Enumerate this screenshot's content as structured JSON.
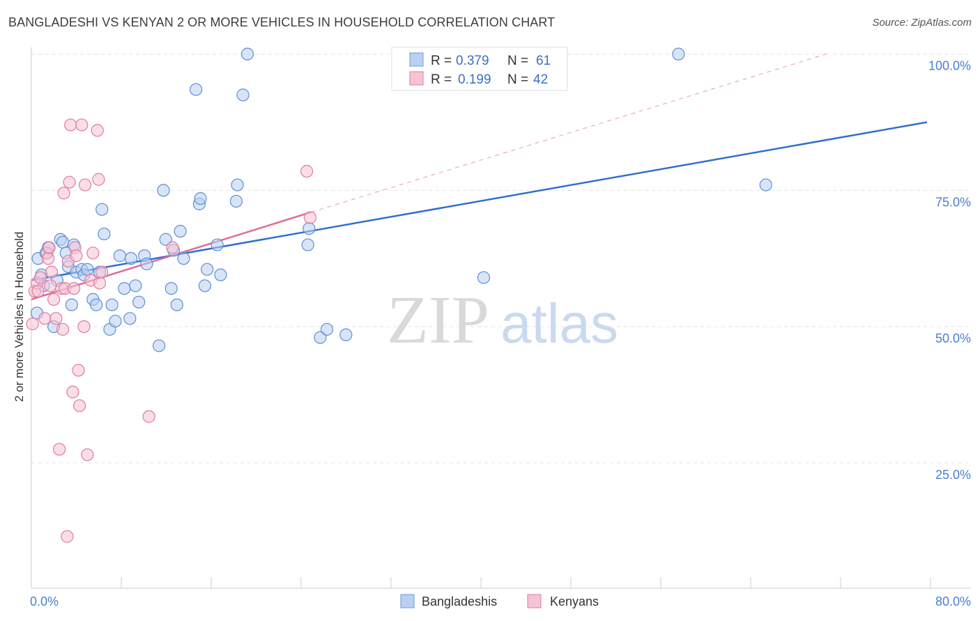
{
  "title": "BANGLADESHI VS KENYAN 2 OR MORE VEHICLES IN HOUSEHOLD CORRELATION CHART",
  "source": "Source: ZipAtlas.com",
  "watermark": {
    "zip": "ZIP",
    "atlas": "atlas"
  },
  "colors": {
    "blue": "#5b8ed8",
    "blue_fill": "#b9d0f0",
    "pink": "#e07aa0",
    "pink_fill": "#f6c3d3",
    "blue_line": "#2f6fcf",
    "pink_line": "#e06a95"
  },
  "legend": {
    "rows": [
      {
        "r_label": "R =",
        "r_value": "0.379",
        "n_label": "N =",
        "n_value": "61"
      },
      {
        "r_label": "R =",
        "r_value": "0.199",
        "n_label": "N =",
        "n_value": "42"
      }
    ]
  },
  "chart_data": {
    "type": "scatter",
    "title": "BANGLADESHI VS KENYAN 2 OR MORE VEHICLES IN HOUSEHOLD CORRELATION CHART",
    "xlabel": "",
    "ylabel": "2 or more Vehicles in Household",
    "xlim": [
      0,
      80
    ],
    "ylim": [
      2,
      102
    ],
    "x_tick_labels": [
      "0.0%",
      "80.0%"
    ],
    "y_ticks": [
      25,
      50,
      75,
      100
    ],
    "y_tick_labels": [
      "25.0%",
      "50.0%",
      "75.0%",
      "100.0%"
    ],
    "grid": true,
    "legend_position": "top-center",
    "series": [
      {
        "name": "Bangladeshis",
        "color": "#5b8ed8",
        "points": [
          [
            0.5,
            52.5
          ],
          [
            0.6,
            62.5
          ],
          [
            0.9,
            59.5
          ],
          [
            1.1,
            57.5
          ],
          [
            1.3,
            63.5
          ],
          [
            1.5,
            64.5
          ],
          [
            2.0,
            50.0
          ],
          [
            2.3,
            58.5
          ],
          [
            2.6,
            66.0
          ],
          [
            2.8,
            65.5
          ],
          [
            3.1,
            63.5
          ],
          [
            3.3,
            61.0
          ],
          [
            3.6,
            54.0
          ],
          [
            3.8,
            65.0
          ],
          [
            4.0,
            60.0
          ],
          [
            4.5,
            60.5
          ],
          [
            4.7,
            59.5
          ],
          [
            5.0,
            60.5
          ],
          [
            5.5,
            55.0
          ],
          [
            5.8,
            54.0
          ],
          [
            6.1,
            60.0
          ],
          [
            6.3,
            71.5
          ],
          [
            6.5,
            67.0
          ],
          [
            7.0,
            49.5
          ],
          [
            7.2,
            54.0
          ],
          [
            7.5,
            51.0
          ],
          [
            7.9,
            63.0
          ],
          [
            8.3,
            57.0
          ],
          [
            8.8,
            51.5
          ],
          [
            8.9,
            62.5
          ],
          [
            9.3,
            57.5
          ],
          [
            9.6,
            54.5
          ],
          [
            10.1,
            63.0
          ],
          [
            10.3,
            61.5
          ],
          [
            11.4,
            46.5
          ],
          [
            11.8,
            75.0
          ],
          [
            12.0,
            66.0
          ],
          [
            12.5,
            57.0
          ],
          [
            12.7,
            64.0
          ],
          [
            13.0,
            54.0
          ],
          [
            13.3,
            67.5
          ],
          [
            13.6,
            62.5
          ],
          [
            14.7,
            93.5
          ],
          [
            15.0,
            72.5
          ],
          [
            15.1,
            73.5
          ],
          [
            15.5,
            57.5
          ],
          [
            15.7,
            60.5
          ],
          [
            16.6,
            65.0
          ],
          [
            16.9,
            59.5
          ],
          [
            18.3,
            73.0
          ],
          [
            18.4,
            76.0
          ],
          [
            18.9,
            92.5
          ],
          [
            19.3,
            100.0
          ],
          [
            24.7,
            65.0
          ],
          [
            24.8,
            68.0
          ],
          [
            25.8,
            48.0
          ],
          [
            26.4,
            49.5
          ],
          [
            28.1,
            48.5
          ],
          [
            40.4,
            59.0
          ],
          [
            57.8,
            100.0
          ],
          [
            65.6,
            76.0
          ]
        ]
      },
      {
        "name": "Kenyans",
        "color": "#e07aa0",
        "points": [
          [
            0.1,
            50.5
          ],
          [
            0.3,
            56.5
          ],
          [
            0.5,
            58.0
          ],
          [
            0.6,
            56.5
          ],
          [
            0.8,
            59.0
          ],
          [
            1.2,
            51.5
          ],
          [
            1.4,
            63.5
          ],
          [
            1.5,
            62.5
          ],
          [
            1.6,
            64.5
          ],
          [
            1.7,
            57.5
          ],
          [
            1.8,
            60.0
          ],
          [
            2.0,
            55.0
          ],
          [
            2.2,
            51.5
          ],
          [
            2.5,
            27.5
          ],
          [
            2.7,
            57.0
          ],
          [
            2.8,
            49.5
          ],
          [
            2.9,
            74.5
          ],
          [
            3.0,
            57.0
          ],
          [
            3.2,
            11.5
          ],
          [
            3.3,
            62.0
          ],
          [
            3.4,
            76.5
          ],
          [
            3.5,
            87.0
          ],
          [
            3.7,
            38.0
          ],
          [
            3.8,
            57.0
          ],
          [
            3.9,
            64.5
          ],
          [
            4.0,
            63.0
          ],
          [
            4.2,
            42.0
          ],
          [
            4.3,
            35.5
          ],
          [
            4.5,
            87.0
          ],
          [
            4.7,
            50.0
          ],
          [
            4.8,
            76.0
          ],
          [
            5.0,
            26.5
          ],
          [
            5.3,
            58.5
          ],
          [
            5.5,
            63.5
          ],
          [
            5.9,
            86.0
          ],
          [
            6.0,
            77.0
          ],
          [
            6.1,
            58.0
          ],
          [
            6.3,
            60.0
          ],
          [
            10.5,
            33.5
          ],
          [
            12.6,
            64.5
          ],
          [
            24.6,
            78.5
          ],
          [
            24.9,
            70.0
          ]
        ]
      }
    ],
    "trendlines": [
      {
        "series": "Bangladeshis",
        "x": [
          0,
          80
        ],
        "y": [
          58.5,
          87.5
        ],
        "style": "solid"
      },
      {
        "series": "Kenyans",
        "x": [
          0,
          25
        ],
        "y": [
          55.0,
          71.0
        ],
        "style": "solid"
      },
      {
        "series": "Kenyans",
        "x": [
          25,
          71
        ],
        "y": [
          71.0,
          100.0
        ],
        "style": "dashed"
      }
    ]
  }
}
